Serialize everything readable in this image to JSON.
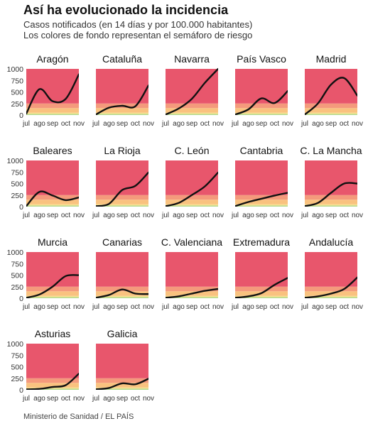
{
  "header": {
    "title": "Así ha evolucionado la incidencia",
    "subtitle_line1": "Casos notificados (en 14 días y por 100.000 habitantes)",
    "subtitle_line2": "Los colores de fondo representan el semáforo de riesgo"
  },
  "footer": {
    "source": "Ministerio de Sanidad / EL PAÍS"
  },
  "colors": {
    "extreme": "#e8566c",
    "very_high": "#f49a7c",
    "high": "#f9c27f",
    "medium": "#f7e08a",
    "low": "#b4d98b",
    "line": "#111111",
    "axis_text": "#333333"
  },
  "risk_bands": [
    {
      "from": 0,
      "to": 25,
      "color_key": "low"
    },
    {
      "from": 25,
      "to": 50,
      "color_key": "medium"
    },
    {
      "from": 50,
      "to": 150,
      "color_key": "high"
    },
    {
      "from": 150,
      "to": 250,
      "color_key": "very_high"
    },
    {
      "from": 250,
      "to": 1000,
      "color_key": "extreme"
    }
  ],
  "chart_data": {
    "type": "line",
    "x": [
      "jul",
      "ago",
      "sep",
      "oct",
      "nov"
    ],
    "x_ticks": [
      "jul",
      "ago",
      "sep",
      "oct",
      "nov"
    ],
    "y_ticks": [
      0,
      250,
      500,
      750,
      1000
    ],
    "ylim": [
      0,
      1000
    ],
    "series": [
      {
        "name": "Aragón",
        "values": [
          30,
          560,
          300,
          350,
          880
        ]
      },
      {
        "name": "Cataluña",
        "values": [
          10,
          160,
          200,
          190,
          640
        ]
      },
      {
        "name": "Navarra",
        "values": [
          10,
          140,
          350,
          700,
          1200
        ]
      },
      {
        "name": "País Vasco",
        "values": [
          10,
          120,
          360,
          260,
          520
        ]
      },
      {
        "name": "Madrid",
        "values": [
          10,
          250,
          660,
          800,
          420
        ]
      },
      {
        "name": "Baleares",
        "values": [
          10,
          320,
          240,
          140,
          200
        ]
      },
      {
        "name": "La Rioja",
        "values": [
          10,
          60,
          360,
          450,
          740
        ]
      },
      {
        "name": "C. León",
        "values": [
          10,
          80,
          250,
          440,
          740
        ]
      },
      {
        "name": "Cantabria",
        "values": [
          10,
          100,
          170,
          240,
          300
        ]
      },
      {
        "name": "C. La Mancha",
        "values": [
          10,
          80,
          300,
          500,
          500
        ]
      },
      {
        "name": "Murcia",
        "values": [
          10,
          80,
          250,
          480,
          500
        ]
      },
      {
        "name": "Canarias",
        "values": [
          10,
          70,
          190,
          100,
          90
        ]
      },
      {
        "name": "C. Valenciana",
        "values": [
          10,
          40,
          100,
          160,
          200
        ]
      },
      {
        "name": "Extremadura",
        "values": [
          10,
          40,
          110,
          290,
          440
        ]
      },
      {
        "name": "Andalucía",
        "values": [
          10,
          40,
          100,
          200,
          450
        ]
      },
      {
        "name": "Asturias",
        "values": [
          10,
          20,
          60,
          100,
          350
        ]
      },
      {
        "name": "Galicia",
        "values": [
          10,
          40,
          140,
          120,
          240
        ]
      }
    ]
  }
}
